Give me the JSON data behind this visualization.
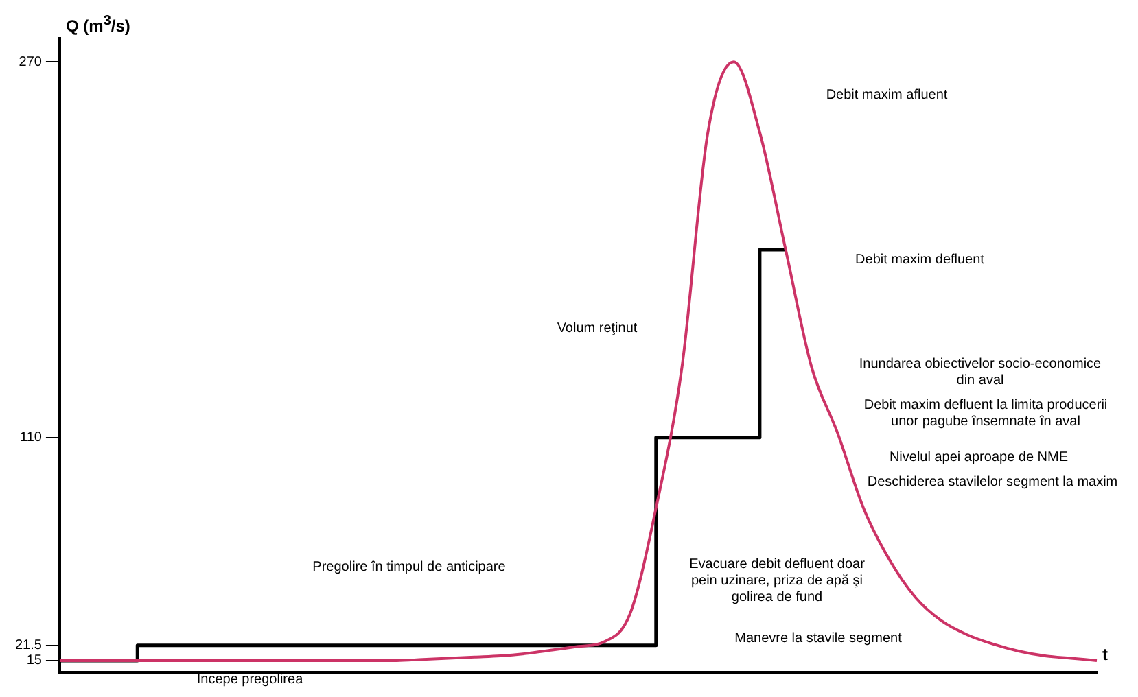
{
  "chart_data": {
    "type": "line",
    "ylabel": "Q (m$^{3}$/s)",
    "xlabel": "t",
    "categories": [
      null,
      null,
      null,
      null,
      null,
      null,
      null,
      null,
      null,
      null,
      null,
      null,
      null,
      null,
      null,
      null,
      null,
      null,
      null,
      null,
      null,
      null,
      null,
      null,
      null,
      null,
      null,
      null,
      null,
      null,
      null,
      null,
      null,
      null,
      null,
      null,
      null,
      null,
      null,
      null,
      null
    ],
    "series": [
      {
        "type": "line",
        "color": "#cc3366",
        "values": [
          15,
          15,
          15,
          15,
          15,
          15,
          15,
          15,
          15,
          15,
          15,
          15,
          15,
          15,
          15.5,
          16,
          16.5,
          17,
          18,
          19.5,
          21,
          23,
          35,
          80,
          140,
          240,
          270,
          240,
          190,
          140,
          112,
          80,
          58,
          42,
          32,
          26,
          22,
          19,
          17,
          16,
          15
        ]
      },
      {
        "type": "step",
        "color": "#000000",
        "values": [
          15,
          15,
          15,
          15,
          21.5,
          21.5,
          21.5,
          21.5,
          21.5,
          21.5,
          21.5,
          21.5,
          21.5,
          21.5,
          21.5,
          21.5,
          21.5,
          21.5,
          21.5,
          21.5,
          21.5,
          21.5,
          21.5,
          21.5,
          110,
          110,
          110,
          110,
          190,
          null,
          null,
          null,
          null,
          null,
          null,
          null,
          null,
          null,
          null,
          null,
          null
        ]
      }
    ],
    "ylim": [
      10,
      280
    ],
    "yticks": [
      15,
      21.5,
      110,
      270
    ],
    "tick_labels": "y",
    "grid": false,
    "legend": false,
    "marker": "none",
    "annotations": [
      "Debit maxim afluent",
      "Debit maxim defluent",
      "Volum reţinut",
      "Inundarea obiectivelor socio-economice din aval",
      "Debit maxim defluent la limita producerii unor pagube însemnate în aval",
      "Nivelul apei aproape de NME",
      "Deschiderea stavilelor segment la maxim",
      "Pregolire în timpul de anticipare",
      "Evacuare debit defluent doar pein uzinare, priza de apă şi golirea de fund",
      "Manevre la stavile segment",
      "Începe pregolirea"
    ]
  }
}
